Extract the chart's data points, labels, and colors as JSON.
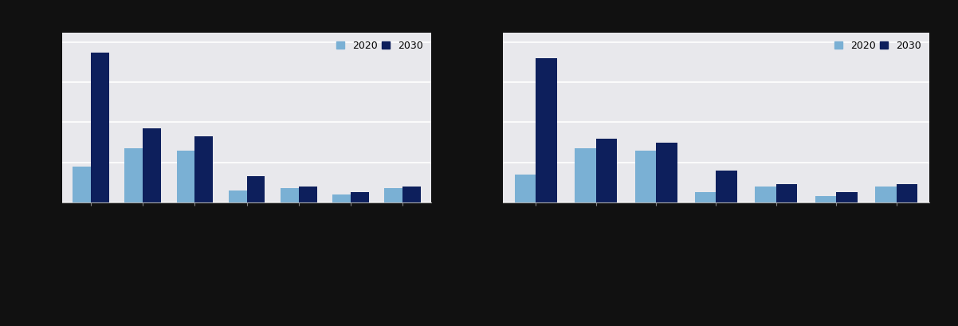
{
  "chart1": {
    "values_2020": [
      0.18,
      0.27,
      0.26,
      0.06,
      0.07,
      0.04,
      0.07
    ],
    "values_2030": [
      0.75,
      0.37,
      0.33,
      0.13,
      0.08,
      0.05,
      0.08
    ]
  },
  "chart2": {
    "values_2020": [
      0.14,
      0.27,
      0.26,
      0.05,
      0.08,
      0.03,
      0.08
    ],
    "values_2030": [
      0.72,
      0.32,
      0.3,
      0.16,
      0.09,
      0.05,
      0.09
    ]
  },
  "color_2020": "#7ab0d4",
  "color_2030": "#0d1f5c",
  "legend_labels": [
    "2020",
    "2030"
  ],
  "plot_bg_color": "#e8e8ec",
  "outer_bg_color": "#111111",
  "bar_width": 0.35,
  "ylim": [
    0,
    0.85
  ],
  "figsize": [
    12.02,
    4.09
  ],
  "dpi": 100,
  "grid_color": "#ffffff",
  "grid_linewidth": 1.2,
  "num_gridlines": 5
}
